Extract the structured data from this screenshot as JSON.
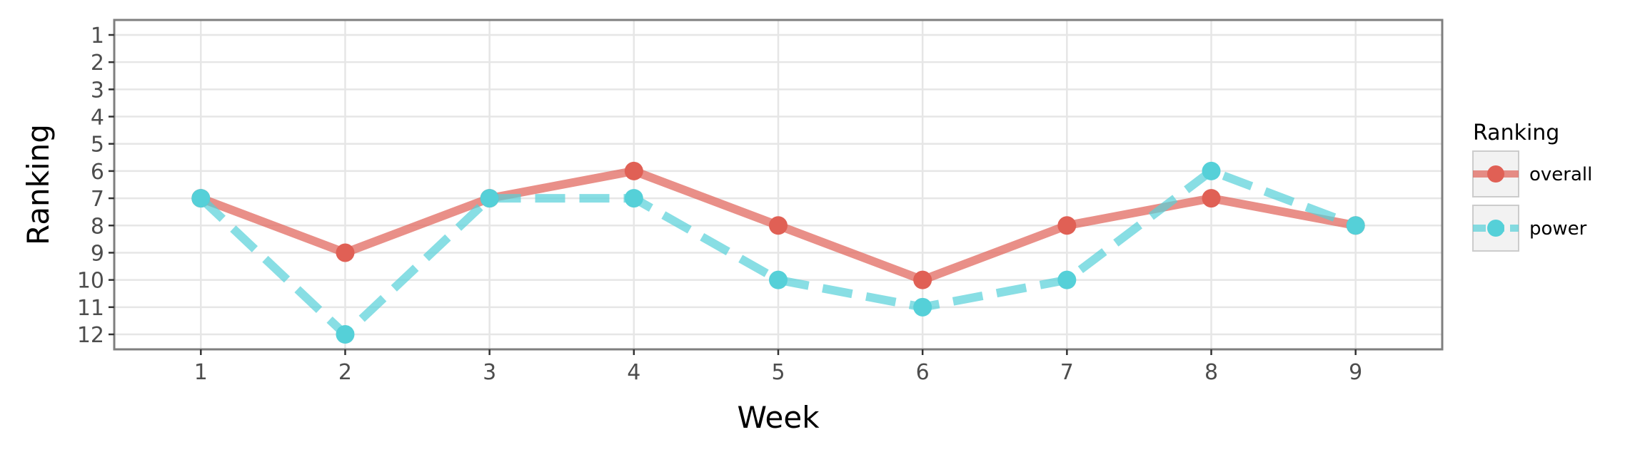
{
  "chart_data": {
    "type": "line",
    "xlabel": "Week",
    "ylabel": "Ranking",
    "x": [
      1,
      2,
      3,
      4,
      5,
      6,
      7,
      8,
      9
    ],
    "x_ticks": [
      "1",
      "2",
      "3",
      "4",
      "5",
      "6",
      "7",
      "8",
      "9"
    ],
    "y_ticks": [
      "1",
      "2",
      "3",
      "4",
      "5",
      "6",
      "7",
      "8",
      "9",
      "10",
      "11",
      "12"
    ],
    "xlim": [
      0.4,
      9.6
    ],
    "ylim": [
      12.55,
      0.45
    ],
    "y_reversed": true,
    "grid": true,
    "legend": {
      "title": "Ranking",
      "placement": "right"
    },
    "series": [
      {
        "name": "overall",
        "values": [
          7,
          9,
          7,
          6,
          8,
          10,
          8,
          7,
          8
        ],
        "color": "#e06055",
        "line_style": "solid"
      },
      {
        "name": "power",
        "values": [
          7,
          12,
          7,
          7,
          10,
          11,
          10,
          6,
          8
        ],
        "color": "#55d0d8",
        "line_style": "dashed"
      }
    ]
  }
}
